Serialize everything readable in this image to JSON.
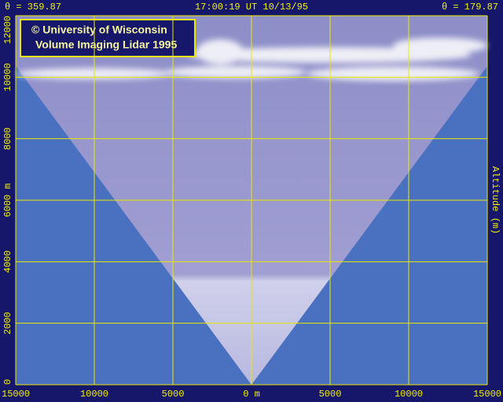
{
  "header": {
    "left": "θ = 359.87",
    "center": "17:00:19 UT 10/13/95",
    "right": "θ = 179.87"
  },
  "logo": {
    "line1": "© University of Wisconsin",
    "line2": "Volume Imaging Lidar  1995"
  },
  "chart_data": {
    "type": "lidar-scan",
    "y2_label": "Altitude (m)",
    "xlim": [
      -15000,
      15000
    ],
    "xticks": [
      {
        "value": -15000,
        "label": "15000"
      },
      {
        "value": -10000,
        "label": "10000"
      },
      {
        "value": -5000,
        "label": "5000"
      },
      {
        "value": 0,
        "label": "0 m"
      },
      5000,
      10000,
      15000
    ],
    "ylim": [
      0,
      12000
    ],
    "yticks": [
      0,
      2000,
      4000,
      {
        "value": 6000,
        "label": "6000 m"
      },
      8000,
      10000,
      12000
    ],
    "grid": true,
    "grid_color": "#e8e800"
  }
}
